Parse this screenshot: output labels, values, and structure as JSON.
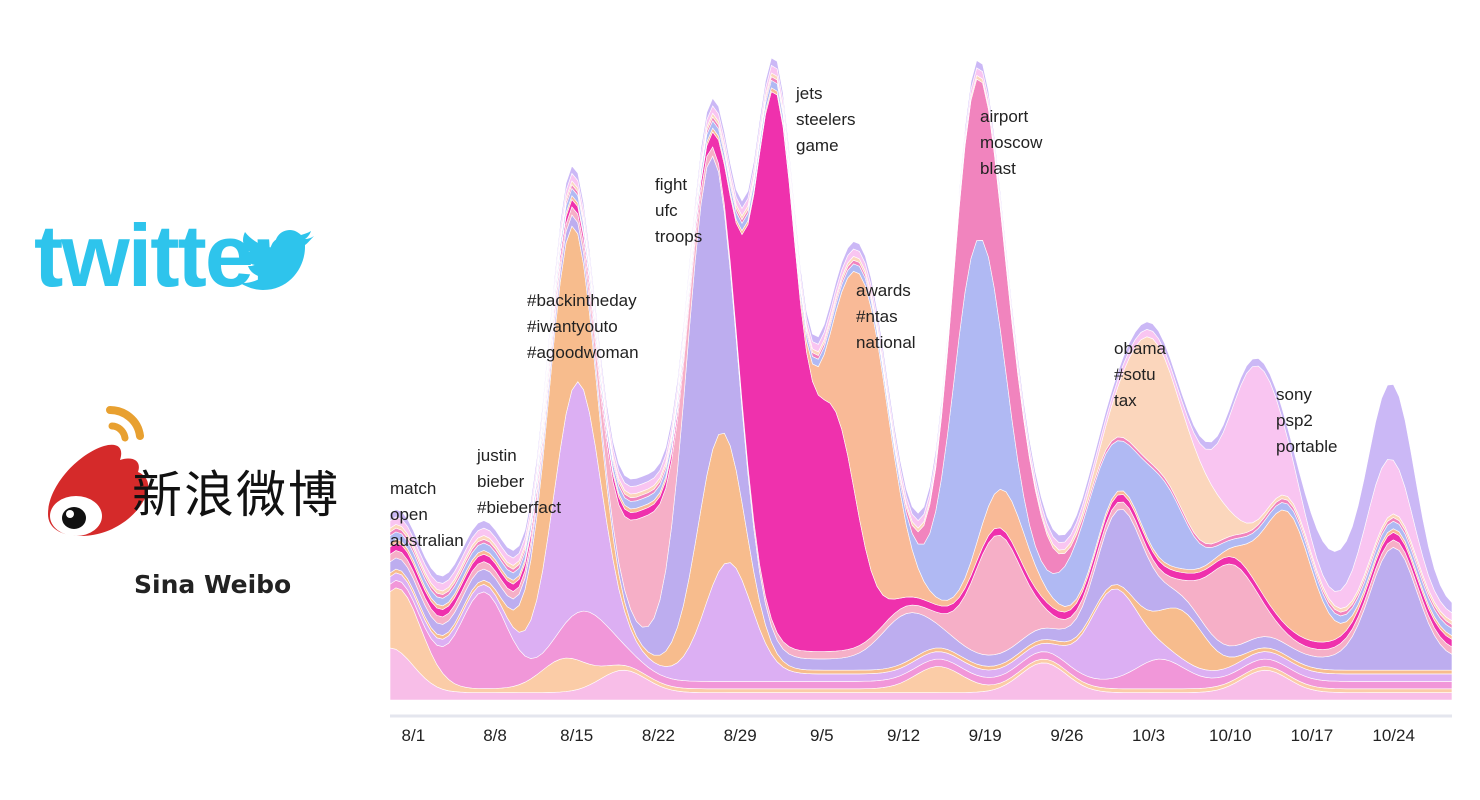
{
  "logos": {
    "twitter": {
      "wordmark": "twitter",
      "icon": "twitter-bird-icon",
      "color": "#2ec4ec"
    },
    "weibo": {
      "chinese": "新浪微博",
      "english": "Sina Weibo",
      "icon": "weibo-eye-icon",
      "color": "#d52a2a",
      "accent": "#e8a030"
    }
  },
  "chart_data": {
    "type": "area",
    "subtype": "streamgraph",
    "x_ticks": [
      "8/1",
      "8/8",
      "8/15",
      "8/22",
      "8/29",
      "9/5",
      "9/12",
      "9/19",
      "9/26",
      "10/3",
      "10/10",
      "10/17",
      "10/24"
    ],
    "x_range": [
      "7/30",
      "10/29"
    ],
    "grid": false,
    "legend": "none",
    "annotations": [
      {
        "date": "7/31",
        "lines": [
          "match",
          "open",
          "australian"
        ]
      },
      {
        "date": "8/7",
        "lines": [
          "justin",
          "bieber",
          "#bieberfact"
        ]
      },
      {
        "date": "8/12",
        "lines": [
          "#backintheday",
          "#iwantyouto",
          "#agoodwoman"
        ]
      },
      {
        "date": "8/24",
        "lines": [
          "fight",
          "ufc",
          "troops"
        ]
      },
      {
        "date": "9/2",
        "lines": [
          "jets",
          "steelers",
          "game"
        ]
      },
      {
        "date": "9/8",
        "lines": [
          "awards",
          "#ntas",
          "national"
        ]
      },
      {
        "date": "9/19",
        "lines": [
          "airport",
          "moscow",
          "blast"
        ]
      },
      {
        "date": "10/2",
        "lines": [
          "obama",
          "#sotu",
          "tax"
        ]
      },
      {
        "date": "10/14",
        "lines": [
          "sony",
          "psp2",
          "portable"
        ]
      }
    ],
    "series": [
      {
        "color": "#f7b8e6",
        "peaks": [
          {
            "day": 0,
            "value": 12
          },
          {
            "day": 20,
            "value": 6
          },
          {
            "day": 56,
            "value": 8
          },
          {
            "day": 75,
            "value": 6
          }
        ],
        "base": 2
      },
      {
        "color": "#fbc8a0",
        "peaks": [
          {
            "day": 1,
            "value": 16
          },
          {
            "day": 15,
            "value": 8
          },
          {
            "day": 47,
            "value": 6
          }
        ],
        "base": 1
      },
      {
        "color": "#f08ed6",
        "peaks": [
          {
            "day": 8,
            "value": 24
          },
          {
            "day": 17,
            "value": 12
          },
          {
            "day": 66,
            "value": 6
          }
        ],
        "base": 2
      },
      {
        "color": "#d9a8f2",
        "peaks": [
          {
            "day": 16,
            "value": 60
          },
          {
            "day": 29,
            "value": 30
          },
          {
            "day": 62,
            "value": 22
          }
        ],
        "base": 2
      },
      {
        "color": "#f6b683",
        "peaks": [
          {
            "day": 15,
            "value": 45
          },
          {
            "day": 28,
            "value": 36
          },
          {
            "day": 68,
            "value": 12
          }
        ],
        "base": 1
      },
      {
        "color": "#b7a6ee",
        "peaks": [
          {
            "day": 27,
            "value": 80
          },
          {
            "day": 44,
            "value": 10
          },
          {
            "day": 63,
            "value": 18
          },
          {
            "day": 86,
            "value": 30
          }
        ],
        "base": 3
      },
      {
        "color": "#f5a8c2",
        "peaks": [
          {
            "day": 22,
            "value": 28
          },
          {
            "day": 52,
            "value": 30
          },
          {
            "day": 72,
            "value": 20
          }
        ],
        "base": 2
      },
      {
        "color": "#ee1fa6",
        "peaks": [
          {
            "day": 33,
            "value": 140
          },
          {
            "day": 38,
            "value": 60
          }
        ],
        "base": 2
      },
      {
        "color": "#f9b48e",
        "peaks": [
          {
            "day": 41,
            "value": 70
          },
          {
            "day": 53,
            "value": 10
          },
          {
            "day": 77,
            "value": 30
          }
        ],
        "base": 1
      },
      {
        "color": "#a9b3f2",
        "peaks": [
          {
            "day": 50,
            "value": 80
          },
          {
            "day": 60,
            "value": 16
          },
          {
            "day": 66,
            "value": 20
          }
        ],
        "base": 2
      },
      {
        "color": "#f07ab8",
        "peaks": [
          {
            "day": 50,
            "value": 40
          },
          {
            "day": 54,
            "value": 16
          }
        ],
        "base": 1
      },
      {
        "color": "#fbd2b6",
        "peaks": [
          {
            "day": 65,
            "value": 30
          },
          {
            "day": 69,
            "value": 18
          }
        ],
        "base": 1
      },
      {
        "color": "#f8c0f0",
        "peaks": [
          {
            "day": 74,
            "value": 40
          },
          {
            "day": 85,
            "value": 14
          }
        ],
        "base": 2
      },
      {
        "color": "#c7b2f5",
        "peaks": [
          {
            "day": 86,
            "value": 18
          },
          {
            "day": 81,
            "value": 8
          }
        ],
        "base": 2
      }
    ]
  }
}
